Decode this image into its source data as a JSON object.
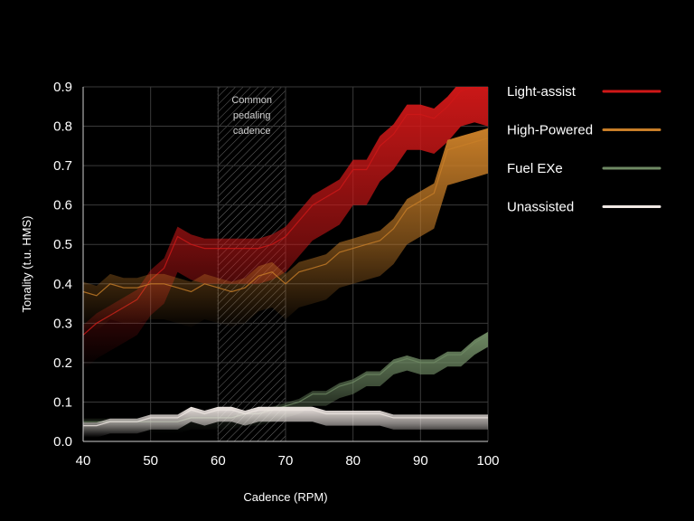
{
  "chart_data": {
    "type": "area",
    "xlabel": "Cadence (RPM)",
    "ylabel": "Tonality (t.u. HMS)",
    "xlim": [
      40,
      100
    ],
    "ylim": [
      0,
      0.9
    ],
    "x_ticks": [
      "40",
      "50",
      "60",
      "70",
      "80",
      "90",
      "100"
    ],
    "y_ticks": [
      "0.0",
      "0.1",
      "0.2",
      "0.3",
      "0.4",
      "0.5",
      "0.6",
      "0.7",
      "0.8",
      "0.9"
    ],
    "grid": true,
    "legend_position": "right",
    "highlight_band": {
      "x_range": [
        60,
        70
      ],
      "label_lines": [
        "Common",
        "pedaling",
        "cadence"
      ]
    },
    "x": [
      40,
      42,
      44,
      46,
      48,
      50,
      52,
      54,
      56,
      58,
      60,
      62,
      64,
      66,
      68,
      70,
      72,
      74,
      76,
      78,
      80,
      82,
      84,
      86,
      88,
      90,
      92,
      94,
      96,
      98,
      100
    ],
    "series": [
      {
        "name": "Light-assist",
        "color": "#d01818",
        "values": [
          0.27,
          0.3,
          0.32,
          0.34,
          0.36,
          0.41,
          0.44,
          0.52,
          0.5,
          0.49,
          0.49,
          0.49,
          0.49,
          0.49,
          0.5,
          0.52,
          0.56,
          0.6,
          0.62,
          0.64,
          0.69,
          0.69,
          0.75,
          0.78,
          0.83,
          0.83,
          0.82,
          0.85,
          0.89,
          0.9,
          0.89
        ]
      },
      {
        "name": "High-Powered",
        "color": "#c87e28",
        "values": [
          0.38,
          0.37,
          0.4,
          0.39,
          0.39,
          0.4,
          0.4,
          0.39,
          0.38,
          0.4,
          0.39,
          0.38,
          0.39,
          0.42,
          0.43,
          0.4,
          0.43,
          0.44,
          0.45,
          0.48,
          0.49,
          0.5,
          0.51,
          0.54,
          0.59,
          0.61,
          0.63,
          0.74,
          0.75,
          0.76,
          0.77
        ]
      },
      {
        "name": "Fuel EXe",
        "color": "#6f8a64",
        "values": [
          0.05,
          0.05,
          0.05,
          0.05,
          0.05,
          0.05,
          0.05,
          0.05,
          0.06,
          0.06,
          0.06,
          0.06,
          0.07,
          0.07,
          0.08,
          0.09,
          0.1,
          0.12,
          0.12,
          0.14,
          0.15,
          0.17,
          0.17,
          0.2,
          0.21,
          0.2,
          0.2,
          0.22,
          0.22,
          0.25,
          0.27
        ]
      },
      {
        "name": "Unassisted",
        "color": "#f0e8e4",
        "values": [
          0.04,
          0.04,
          0.05,
          0.05,
          0.05,
          0.06,
          0.06,
          0.06,
          0.08,
          0.07,
          0.08,
          0.08,
          0.07,
          0.08,
          0.08,
          0.08,
          0.08,
          0.08,
          0.07,
          0.07,
          0.07,
          0.07,
          0.07,
          0.06,
          0.06,
          0.06,
          0.06,
          0.06,
          0.06,
          0.06,
          0.06
        ]
      }
    ]
  }
}
